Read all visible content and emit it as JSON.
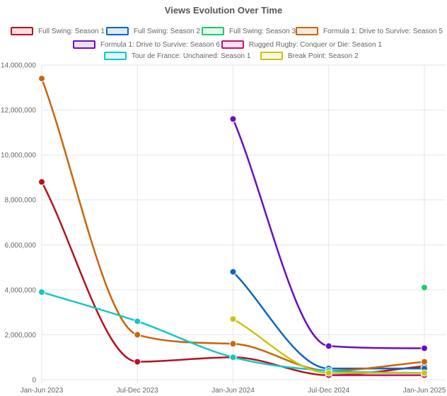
{
  "chart_data": {
    "type": "line",
    "title": "Views Evolution Over Time",
    "xlabel": "",
    "ylabel": "",
    "categories": [
      "Jan-Jun 2023",
      "Jul-Dec 2023",
      "Jan-Jun 2024",
      "Jul-Dec 2024",
      "Jan-Jun 2025"
    ],
    "y_ticks": [
      "0",
      "2,000,000",
      "4,000,000",
      "6,000,000",
      "8,000,000",
      "10,000,000",
      "12,000,000",
      "14,000,000"
    ],
    "ylim": [
      0,
      14000000
    ],
    "grid": true,
    "legend_position": "top",
    "series": [
      {
        "name": "Full Swing: Season 1",
        "color": "#b5121b",
        "values": [
          8800000,
          800000,
          1000000,
          200000,
          600000
        ]
      },
      {
        "name": "Full Swing: Season 2",
        "color": "#0a66c2",
        "values": [
          null,
          null,
          4800000,
          500000,
          500000
        ]
      },
      {
        "name": "Full Swing: Season 3",
        "color": "#1dc96a",
        "values": [
          null,
          null,
          null,
          null,
          4100000
        ]
      },
      {
        "name": "Formula 1: Drive to Survive: Season 5",
        "color": "#c9650a",
        "values": [
          13400000,
          2000000,
          1600000,
          400000,
          800000
        ]
      },
      {
        "name": "Formula 1: Drive to Survive: Season 6",
        "color": "#6a0dc4",
        "values": [
          null,
          null,
          11600000,
          1500000,
          1400000
        ]
      },
      {
        "name": "Rugged Rugby: Conquer or Die: Season 1",
        "color": "#c4126e",
        "values": [
          null,
          null,
          null,
          200000,
          200000
        ]
      },
      {
        "name": "Tour de France: Unchained: Season 1",
        "color": "#13c7c7",
        "values": [
          3900000,
          2600000,
          1000000,
          400000,
          300000
        ]
      },
      {
        "name": "Break Point: Season 2",
        "color": "#c8c414",
        "values": [
          null,
          null,
          2700000,
          300000,
          300000
        ]
      }
    ]
  }
}
